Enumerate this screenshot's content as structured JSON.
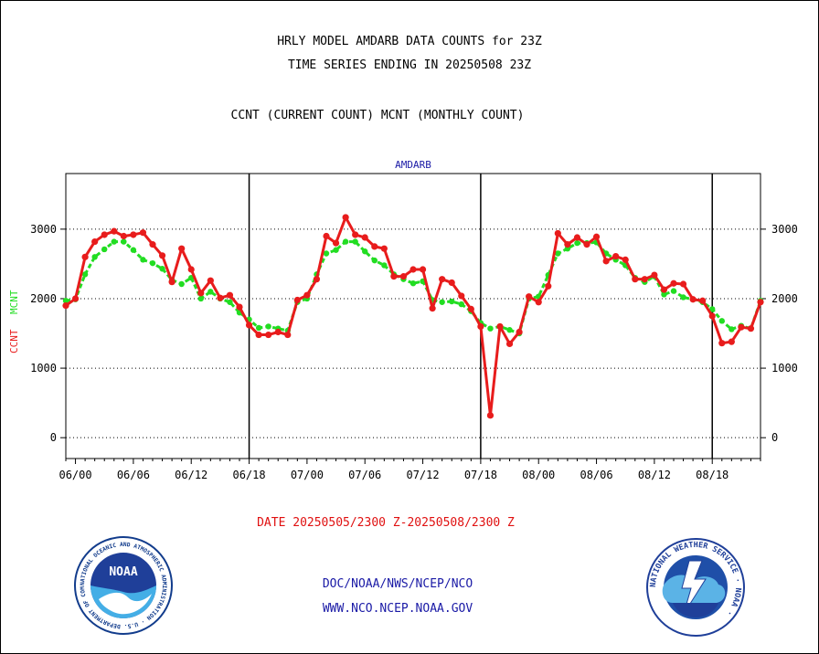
{
  "header": {
    "title_line1": "HRLY MODEL AMDARB DATA COUNTS for 23Z",
    "title_line2": "TIME SERIES ENDING IN 20250508 23Z",
    "subtitle": "CCNT (CURRENT COUNT) MCNT (MONTHLY COUNT)"
  },
  "footer": {
    "date_range": "DATE 20250505/2300 Z-20250508/2300 Z",
    "org_line": "DOC/NOAA/NWS/NCEP/NCO",
    "url_line": "WWW.NCO.NCEP.NOAA.GOV",
    "noaa_logo_text": "NOAA",
    "noaa_ring_text": "NATIONAL OCEANIC AND ATMOSPHERIC ADMINISTRATION · U.S. DEPARTMENT OF COMMERCE ·",
    "nws_ring_text": "NATIONAL WEATHER SERVICE · NOAA ·"
  },
  "colors": {
    "ccnt": "#e81c1c",
    "mcnt": "#22dd22",
    "plot_title": "#1a1aa6",
    "footer_blue": "#1a1aa6"
  },
  "chart_data": {
    "type": "line",
    "title": "AMDARB",
    "ylabel_left_ccnt": "CCNT",
    "ylabel_left_mcnt": "MCNT",
    "ylim": [
      -300,
      3800
    ],
    "yticks": [
      0,
      1000,
      2000,
      3000
    ],
    "grid": "horizontal dotted at y ticks; vertical solid at day boundaries (06/18 to 07/00)",
    "xlim": [
      -1,
      71
    ],
    "xtick_labels": [
      "06/00",
      "06/06",
      "06/12",
      "06/18",
      "07/00",
      "07/06",
      "07/12",
      "07/18",
      "08/00",
      "08/06",
      "08/12",
      "08/18"
    ],
    "xticks": [
      0,
      6,
      12,
      18,
      24,
      30,
      36,
      42,
      48,
      54,
      60,
      66
    ],
    "day_dividers": [
      18,
      42,
      66
    ],
    "x": [
      -1,
      0,
      1,
      2,
      3,
      4,
      5,
      6,
      7,
      8,
      9,
      10,
      11,
      12,
      13,
      14,
      15,
      16,
      17,
      18,
      19,
      20,
      21,
      22,
      23,
      24,
      25,
      26,
      27,
      28,
      29,
      30,
      31,
      32,
      33,
      34,
      35,
      36,
      37,
      38,
      39,
      40,
      41,
      42,
      43,
      44,
      45,
      46,
      47,
      48,
      49,
      50,
      51,
      52,
      53,
      54,
      55,
      56,
      57,
      58,
      59,
      60,
      61,
      62,
      63,
      64,
      65,
      66,
      67,
      68,
      69,
      70,
      71
    ],
    "series": [
      {
        "name": "CCNT",
        "values": [
          1900,
          2000,
          2600,
          2820,
          2920,
          2970,
          2900,
          2920,
          2950,
          2780,
          2620,
          2240,
          2720,
          2420,
          2080,
          2260,
          2010,
          2050,
          1880,
          1620,
          1480,
          1480,
          1520,
          1480,
          1980,
          2050,
          2280,
          2900,
          2800,
          3170,
          2920,
          2880,
          2750,
          2720,
          2320,
          2320,
          2420,
          2420,
          1860,
          2280,
          2230,
          2040,
          1850,
          1600,
          320,
          1600,
          1350,
          1520,
          2030,
          1950,
          2180,
          2940,
          2780,
          2880,
          2780,
          2890,
          2540,
          2610,
          2560,
          2280,
          2280,
          2340,
          2130,
          2220,
          2210,
          1990,
          1970,
          1750,
          1360,
          1380,
          1590,
          1570,
          1950
        ]
      },
      {
        "name": "MCNT",
        "values": [
          1970,
          1990,
          2350,
          2600,
          2710,
          2820,
          2820,
          2700,
          2560,
          2510,
          2430,
          2270,
          2210,
          2300,
          2000,
          2100,
          2000,
          1950,
          1800,
          1700,
          1580,
          1600,
          1570,
          1540,
          1950,
          2000,
          2350,
          2650,
          2700,
          2820,
          2820,
          2680,
          2550,
          2480,
          2350,
          2280,
          2220,
          2250,
          1980,
          1950,
          1960,
          1920,
          1820,
          1650,
          1570,
          1600,
          1550,
          1500,
          2000,
          2030,
          2340,
          2650,
          2720,
          2800,
          2800,
          2810,
          2650,
          2560,
          2480,
          2300,
          2240,
          2320,
          2060,
          2110,
          2020,
          1990,
          1950,
          1850,
          1680,
          1560,
          1610,
          1570,
          1970
        ]
      }
    ]
  }
}
